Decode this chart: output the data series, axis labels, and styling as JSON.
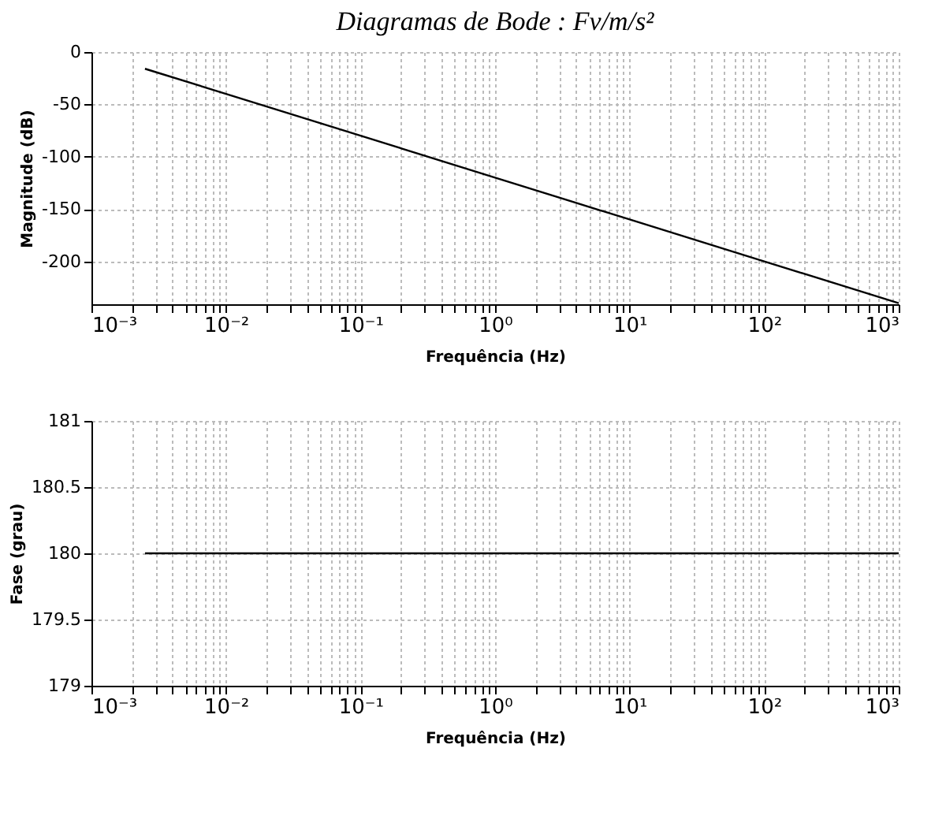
{
  "chart_data": [
    {
      "type": "line",
      "title": "Diagramas de Bode : Fv/m/s²",
      "xlabel": "Frequência (Hz)",
      "ylabel": "Magnitude (dB)",
      "log": "x",
      "grid": true,
      "xlim": [
        0.001,
        1000
      ],
      "xticks": [
        {
          "value": 0.001,
          "label": "10⁻³"
        },
        {
          "value": 0.01,
          "label": "10⁻²"
        },
        {
          "value": 0.1,
          "label": "10⁻¹"
        },
        {
          "value": 1,
          "label": "10⁰"
        },
        {
          "value": 10,
          "label": "10¹"
        },
        {
          "value": 100,
          "label": "10²"
        },
        {
          "value": 1000,
          "label": "10³"
        }
      ],
      "ylim": [
        -241,
        0
      ],
      "yticks": [
        0,
        -50,
        -100,
        -150,
        -200
      ],
      "series": [
        {
          "color": "#000000",
          "x": [
            0.0025,
            0.01,
            0.1,
            1,
            10,
            100,
            1000
          ],
          "values": [
            -16,
            -40,
            -80,
            -120,
            -160,
            -200,
            -240
          ]
        }
      ]
    },
    {
      "type": "line",
      "xlabel": "Frequência (Hz)",
      "ylabel": "Fase (grau)",
      "log": "x",
      "grid": true,
      "xlim": [
        0.001,
        1000
      ],
      "xticks": [
        {
          "value": 0.001,
          "label": "10⁻³"
        },
        {
          "value": 0.01,
          "label": "10⁻²"
        },
        {
          "value": 0.1,
          "label": "10⁻¹"
        },
        {
          "value": 1,
          "label": "10⁰"
        },
        {
          "value": 10,
          "label": "10¹"
        },
        {
          "value": 100,
          "label": "10²"
        },
        {
          "value": 1000,
          "label": "10³"
        }
      ],
      "ylim": [
        179,
        181
      ],
      "yticks": [
        181,
        180.5,
        180,
        179.5,
        179
      ],
      "series": [
        {
          "color": "#000000",
          "x": [
            0.0025,
            1000
          ],
          "values": [
            180,
            180
          ]
        }
      ]
    }
  ]
}
